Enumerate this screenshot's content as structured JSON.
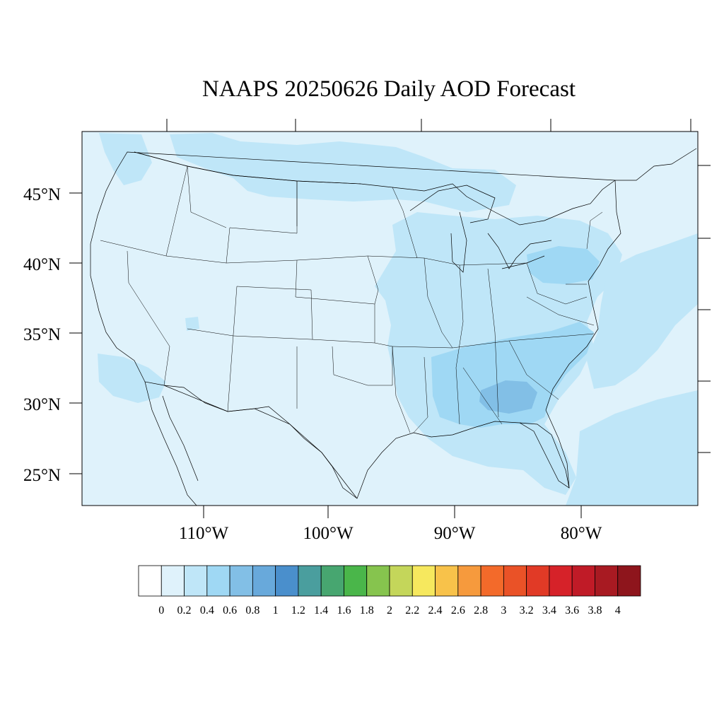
{
  "title": "NAAPS 20250626 Daily AOD Forecast",
  "lat_labels": [
    "45°N",
    "40°N",
    "35°N",
    "30°N",
    "25°N"
  ],
  "lon_labels": [
    "110°W",
    "100°W",
    "90°W",
    "80°W"
  ],
  "colorbar": {
    "tick_labels": [
      "0",
      "0.2",
      "0.4",
      "0.6",
      "0.8",
      "1",
      "1.2",
      "1.4",
      "1.6",
      "1.8",
      "2",
      "2.2",
      "2.4",
      "2.6",
      "2.8",
      "3",
      "3.2",
      "3.4",
      "3.6",
      "3.8",
      "4"
    ],
    "colors": [
      "#ffffff",
      "#dff2fb",
      "#bfe6f8",
      "#9fd8f4",
      "#82bfe6",
      "#68a9db",
      "#4a8fcc",
      "#4a9e9e",
      "#47a670",
      "#4ab64a",
      "#86c44e",
      "#c4d65a",
      "#f6e85e",
      "#f8c24a",
      "#f69a3d",
      "#f36a2a",
      "#ea5227",
      "#e13a26",
      "#d62229",
      "#c01b27",
      "#a81a22",
      "#8e151c"
    ]
  },
  "aod_field": {
    "background_level": "0.2",
    "higher_regions": [
      {
        "region": "Georgia / Alabama",
        "level": "0.6–0.8"
      },
      {
        "region": "Southeast & Pennsylvania",
        "level": "0.4–0.6"
      },
      {
        "region": "Mississippi Valley / Great Lakes / Atlantic",
        "level": "0.2–0.4"
      }
    ]
  }
}
